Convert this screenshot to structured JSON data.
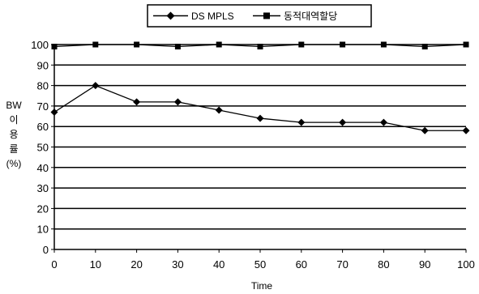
{
  "chart_data": {
    "type": "line",
    "title": "",
    "xlabel": "Time",
    "ylabel_lines": [
      "BW",
      "이",
      "용",
      "률",
      "(%)"
    ],
    "x": [
      0,
      10,
      20,
      30,
      40,
      50,
      60,
      70,
      80,
      90,
      100
    ],
    "xlim": [
      0,
      100
    ],
    "ylim": [
      0,
      100
    ],
    "yticks": [
      0,
      10,
      20,
      30,
      40,
      50,
      60,
      70,
      80,
      90,
      100
    ],
    "grid": true,
    "legend_position": "top-center",
    "series": [
      {
        "name": "DS MPLS",
        "marker": "diamond",
        "color": "#000000",
        "values": [
          67,
          80,
          72,
          72,
          68,
          64,
          62,
          62,
          62,
          58,
          58
        ]
      },
      {
        "name": "동적대역할당",
        "marker": "square",
        "color": "#000000",
        "values": [
          99,
          100,
          100,
          99,
          100,
          99,
          100,
          100,
          100,
          99,
          100
        ]
      }
    ]
  }
}
